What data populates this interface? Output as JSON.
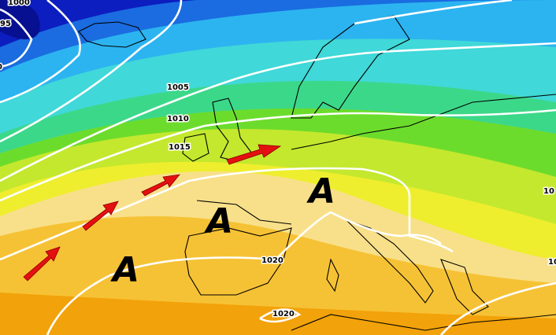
{
  "isobar_labels": [
    "1000",
    "95",
    "0",
    "1005",
    "1010",
    "1015",
    "1020",
    "1020",
    "10",
    "10"
  ],
  "pressure_centers": [
    "A",
    "A",
    "A"
  ]
}
